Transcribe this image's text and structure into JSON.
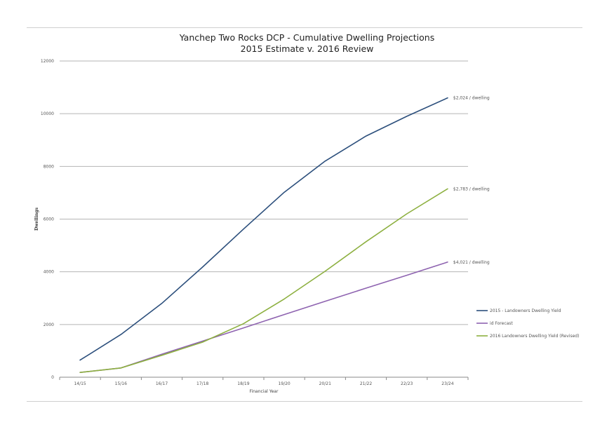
{
  "title_line1": "Yanchep Two Rocks DCP - Cumulative Dwelling Projections",
  "title_line2": "2015 Estimate v. 2016 Review",
  "chart_data": {
    "type": "line",
    "xlabel": "Financial Year",
    "ylabel": "Dwellings",
    "categories": [
      "14/15",
      "15/16",
      "16/17",
      "17/18",
      "18/19",
      "19/20",
      "20/21",
      "21/22",
      "22/23",
      "23/24"
    ],
    "ylim": [
      0,
      12000
    ],
    "yticks": [
      0,
      2000,
      4000,
      6000,
      8000,
      10000,
      12000
    ],
    "grid": true,
    "legend_position": "right",
    "series": [
      {
        "name": "2015 - Landowners Dwelling Yield",
        "color": "#2c4f7c",
        "values": [
          650,
          1620,
          2800,
          4180,
          5620,
          7020,
          8200,
          9150,
          9900,
          10600
        ],
        "end_label": "$2,024 / dwelling"
      },
      {
        "name": "id Forecast",
        "color": "#8e63b0",
        "values": [
          180,
          350,
          870,
          1370,
          1870,
          2380,
          2880,
          3380,
          3870,
          4370
        ],
        "end_label": "$4,021 / dwelling"
      },
      {
        "name": "2016 Landowners Dwelling Yield (Revised)",
        "color": "#8db040",
        "values": [
          180,
          350,
          830,
          1330,
          2030,
          2970,
          4020,
          5140,
          6200,
          7150
        ],
        "end_label": "$2,783 / dwelling"
      }
    ]
  }
}
